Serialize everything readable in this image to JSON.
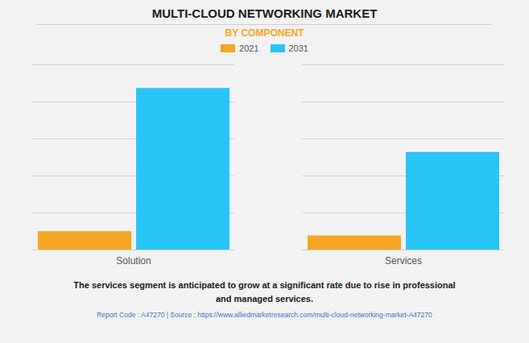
{
  "chart_data": {
    "type": "bar",
    "title": "MULTI-CLOUD NETWORKING MARKET",
    "subtitle": "BY COMPONENT",
    "categories": [
      "Solution",
      "Services"
    ],
    "series": [
      {
        "name": "2021",
        "color": "#F5A623",
        "values": [
          0.55,
          0.42
        ]
      },
      {
        "name": "2031",
        "color": "#29C4F6",
        "values": [
          4.8,
          2.9
        ]
      }
    ],
    "ylim": [
      0,
      5.5
    ],
    "yticks": [
      0,
      1.1,
      2.2,
      3.3,
      4.4,
      5.5
    ],
    "grid": true,
    "tick_labels": "x",
    "legend": "top",
    "annotation": "The services segment is anticipated to grow at a significant rate due to rise in professional\nand managed services.",
    "footer": "Report Code : A47270  |  Source : https://www.alliedmarketresearch.com/multi-cloud-networking-market-A47270"
  }
}
